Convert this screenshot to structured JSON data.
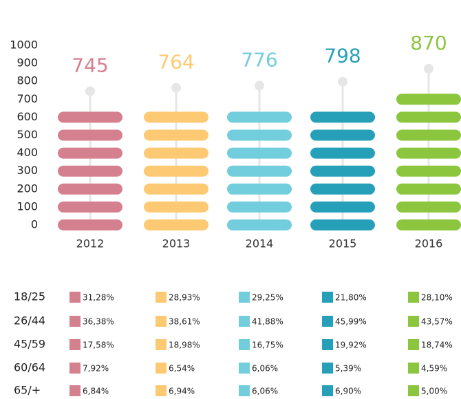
{
  "chart_data": {
    "type": "pill-bar",
    "categories": [
      "2012",
      "2013",
      "2014",
      "2015",
      "2016"
    ],
    "values": [
      745,
      764,
      776,
      798,
      870
    ],
    "colors": [
      "#d5808f",
      "#fdc973",
      "#72cddc",
      "#26a0b8",
      "#8cc63e"
    ],
    "ylim": [
      0,
      1000
    ],
    "yticks": [
      0,
      100,
      200,
      300,
      400,
      500,
      600,
      700,
      800,
      900,
      1000
    ],
    "table": {
      "rows": [
        {
          "label": "18/25",
          "cells": [
            "31,28%",
            "28,93%",
            "29,25%",
            "21,80%",
            "28,10%"
          ]
        },
        {
          "label": "26/44",
          "cells": [
            "36,38%",
            "38,61%",
            "41,88%",
            "45,99%",
            "43,57%"
          ]
        },
        {
          "label": "45/59",
          "cells": [
            "17,58%",
            "18,98%",
            "16,75%",
            "19,92%",
            "18,74%"
          ]
        },
        {
          "label": "60/64",
          "cells": [
            "7,92%",
            "6,54%",
            "6,06%",
            "5,39%",
            "4,59%"
          ]
        },
        {
          "label": "65/+",
          "cells": [
            "6,84%",
            "6,94%",
            "6,06%",
            "6,90%",
            "5,00%"
          ]
        }
      ]
    }
  }
}
